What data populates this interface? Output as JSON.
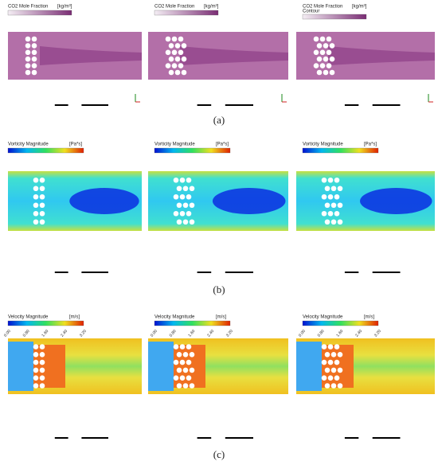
{
  "panels": [
    {
      "label": "(a)",
      "plots": [
        {
          "legend_title": "CO2 Mole Fraction",
          "unit": "[kg/m³]"
        },
        {
          "legend_title": "CO2 Mole Fraction",
          "unit": "[kg/m³]"
        },
        {
          "legend_title": "CO2 Mole Fraction",
          "legend_subtitle": "Contour",
          "unit": "[kg/m³]"
        }
      ]
    },
    {
      "label": "(b)",
      "plots": [
        {
          "legend_title": "Vorticity Magnitude",
          "unit": "[Pa*s]"
        },
        {
          "legend_title": "Vorticity Magnitude",
          "unit": "[Pa*s]"
        },
        {
          "legend_title": "Vorticity Magnitude",
          "unit": "[Pa*s]"
        }
      ]
    },
    {
      "label": "(c)",
      "plots": [
        {
          "legend_title": "Velocity Magnitude",
          "unit": "[m/s]",
          "ticks": [
            "0.00",
            "0.80",
            "1.60",
            "2.40",
            "3.20"
          ]
        },
        {
          "legend_title": "Velocity Magnitude",
          "unit": "[m/s]",
          "ticks": [
            "0.00",
            "0.80",
            "1.60",
            "2.40",
            "3.20"
          ]
        },
        {
          "legend_title": "Velocity Magnitude",
          "unit": "[m/s]",
          "ticks": [
            "0.00",
            "0.80",
            "1.60",
            "2.40",
            "3.20"
          ]
        }
      ]
    }
  ]
}
